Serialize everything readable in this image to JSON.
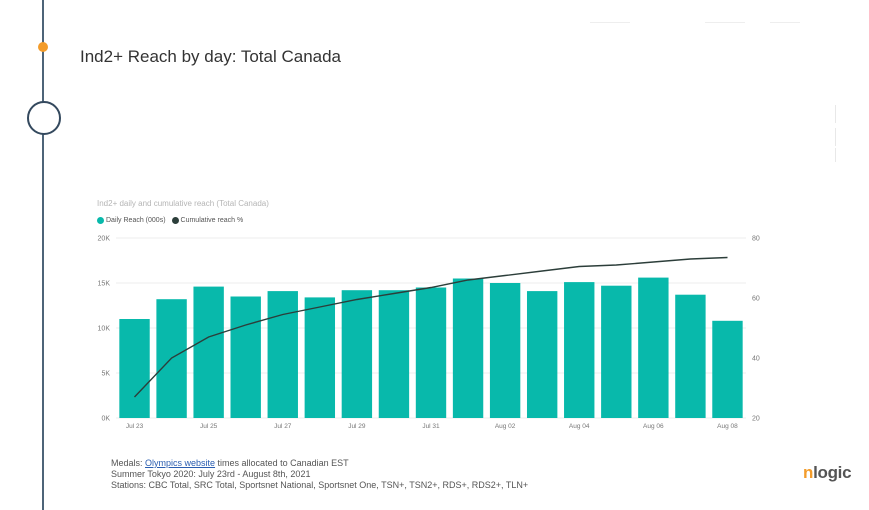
{
  "slide": {
    "title": "Ind2+ Reach by day: Total Canada"
  },
  "colors": {
    "bar": "#08b9ab",
    "line": "#2c3e3a",
    "accent": "#f39c2b",
    "timeline": "#4d6478"
  },
  "chart_data": {
    "type": "bar",
    "title": "Ind2+ daily and cumulative reach (Total Canada)",
    "legend_position": "top-left",
    "grid": true,
    "categories": [
      "Jul 23",
      "Jul 24",
      "Jul 25",
      "Jul 26",
      "Jul 27",
      "Jul 28",
      "Jul 29",
      "Jul 30",
      "Jul 31",
      "Aug 01",
      "Aug 02",
      "Aug 03",
      "Aug 04",
      "Aug 05",
      "Aug 06",
      "Aug 07",
      "Aug 08"
    ],
    "tick_labels": [
      "Jul 23",
      "",
      "Jul 25",
      "",
      "Jul 27",
      "",
      "Jul 29",
      "",
      "Jul 31",
      "",
      "Aug 02",
      "",
      "Aug 04",
      "",
      "Aug 06",
      "",
      "Aug 08"
    ],
    "series": [
      {
        "name": "Daily Reach (000s)",
        "type": "bar",
        "axis": "left",
        "values": [
          11000,
          13200,
          14600,
          13500,
          14100,
          13400,
          14200,
          14200,
          14500,
          15500,
          15000,
          14100,
          15100,
          14700,
          15600,
          13700,
          10800
        ]
      },
      {
        "name": "Cumulative reach %",
        "type": "line",
        "axis": "right",
        "values": [
          27,
          40,
          47,
          51,
          54.5,
          57,
          59.5,
          61.5,
          63.5,
          66,
          67.5,
          69,
          70.5,
          71,
          72,
          73,
          73.5
        ]
      }
    ],
    "y_left": {
      "min": 0,
      "max": 20000,
      "ticks": [
        0,
        5000,
        10000,
        15000,
        20000
      ],
      "tick_labels": [
        "0K",
        "5K",
        "10K",
        "15K",
        "20K"
      ]
    },
    "y_right": {
      "min": 20,
      "max": 80,
      "ticks": [
        20,
        40,
        60,
        80
      ],
      "tick_labels": [
        "20",
        "40",
        "60",
        "80"
      ]
    }
  },
  "footnote": {
    "line1_prefix": "Medals: ",
    "line1_link": "Olympics website",
    "line1_suffix": " times allocated to Canadian EST",
    "line2": "Summer Tokyo 2020:  July 23rd - August 8th, 2021",
    "line3": "Stations: CBC Total, SRC Total, Sportsnet National, Sportsnet One, TSN+, TSN2+, RDS+, RDS2+, TLN+"
  },
  "logo": {
    "n": "n",
    "rest": "logic"
  }
}
